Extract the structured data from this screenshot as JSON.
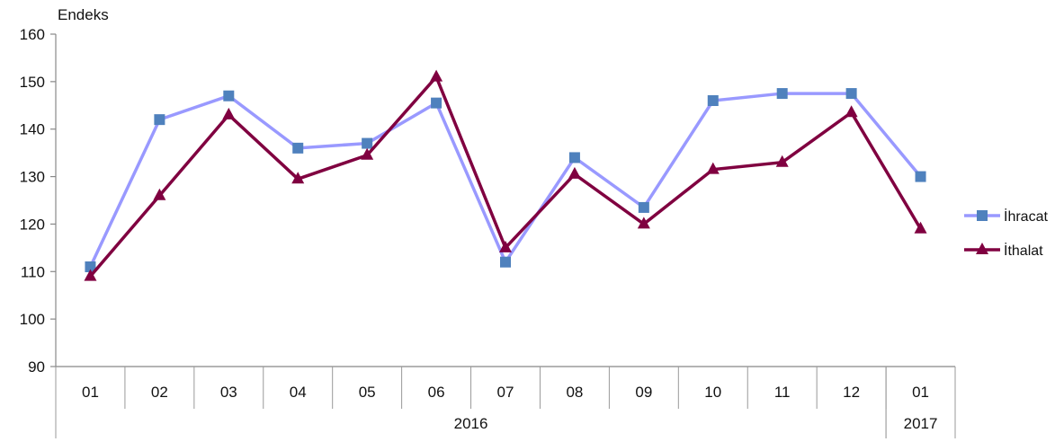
{
  "chart_data": {
    "type": "line",
    "ylabel": "Endeks",
    "ylim": [
      90,
      160
    ],
    "yticks": [
      90,
      100,
      110,
      120,
      130,
      140,
      150,
      160
    ],
    "categories": [
      "01",
      "02",
      "03",
      "04",
      "05",
      "06",
      "07",
      "08",
      "09",
      "10",
      "11",
      "12",
      "01"
    ],
    "year_groups": [
      {
        "label": "2016",
        "from": 0,
        "to": 11
      },
      {
        "label": "2017",
        "from": 12,
        "to": 12
      }
    ],
    "grid": false,
    "legend_position": "right",
    "series": [
      {
        "name": "İhracat",
        "color": "#9999ff",
        "marker_color": "#4f81bd",
        "marker": "square",
        "values": [
          111,
          142,
          147,
          136,
          137,
          145.5,
          112,
          134,
          123.5,
          146,
          147.5,
          147.5,
          130
        ]
      },
      {
        "name": "İthalat",
        "color": "#800040",
        "marker_color": "#800040",
        "marker": "triangle",
        "values": [
          109,
          126,
          143,
          129.5,
          134.5,
          151,
          115,
          130.5,
          120,
          131.5,
          133,
          143.5,
          119
        ]
      }
    ]
  }
}
